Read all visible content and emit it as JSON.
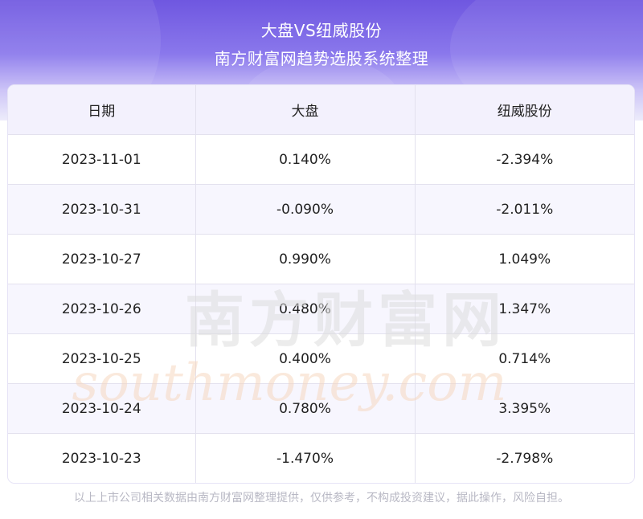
{
  "header": {
    "title": "大盘VS纽威股份",
    "subtitle": "南方财富网趋势选股系统整理"
  },
  "table": {
    "columns": [
      "日期",
      "大盘",
      "纽威股份"
    ],
    "rows": [
      [
        "2023-11-01",
        "0.140%",
        "-2.394%"
      ],
      [
        "2023-10-31",
        "-0.090%",
        "-2.011%"
      ],
      [
        "2023-10-27",
        "0.990%",
        "1.049%"
      ],
      [
        "2023-10-26",
        "0.480%",
        "1.347%"
      ],
      [
        "2023-10-25",
        "0.400%",
        "0.714%"
      ],
      [
        "2023-10-24",
        "0.780%",
        "3.395%"
      ],
      [
        "2023-10-23",
        "-1.470%",
        "-2.798%"
      ]
    ]
  },
  "watermark": {
    "cn": "南方财富网",
    "en": "southmoney.com"
  },
  "footnote": "以上上市公司相关数据由南方财富网整理提供，仅供参考，不构成投资建议，据此操作，风险自担。",
  "colors": {
    "header_top": "#6f57e0",
    "header_row": "#f3f1fd",
    "alt_row": "#f7f6fe",
    "watermark_cn": "#e2e2e2",
    "watermark_en": "#f9e1cf"
  }
}
